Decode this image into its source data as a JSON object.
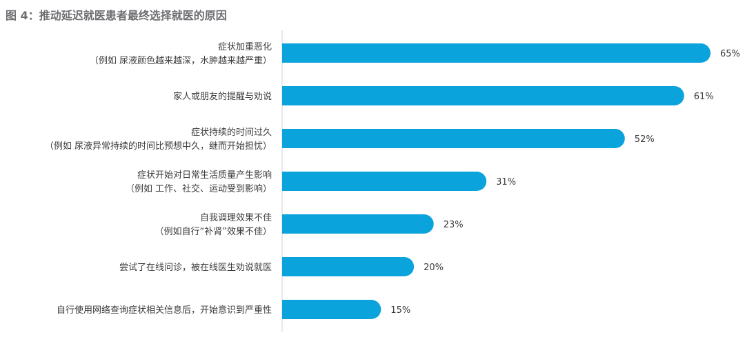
{
  "chart_data": {
    "type": "bar",
    "orientation": "horizontal",
    "title": "图 4：推动延迟就医患者最终选择就医的原因",
    "categories": [
      [
        "症状加重恶化",
        "（例如 尿液颜色越来越深，水肿越来越严重）"
      ],
      [
        "家人或朋友的提醒与劝说"
      ],
      [
        "症状持续的时间过久",
        "（例如 尿液异常持续的时间比预想中久，继而开始担忧）"
      ],
      [
        "症状开始对日常生活质量产生影响",
        "（例如 工作、社交、运动受到影响）"
      ],
      [
        "自我调理效果不佳",
        "（例如自行“补肾”效果不佳）"
      ],
      [
        "尝试了在线问诊，被在线医生劝说就医"
      ],
      [
        "自行使用网络查询症状相关信息后，开始意识到严重性"
      ]
    ],
    "values": [
      65,
      61,
      52,
      31,
      23,
      20,
      15
    ],
    "value_labels": [
      "65%",
      "61%",
      "52%",
      "31%",
      "23%",
      "20%",
      "15%"
    ],
    "unit": "%",
    "xlim": [
      0,
      65
    ],
    "grid": false,
    "legend": "none",
    "bar_color": "#0aa3dc",
    "axis_color": "#d0d0d0"
  }
}
